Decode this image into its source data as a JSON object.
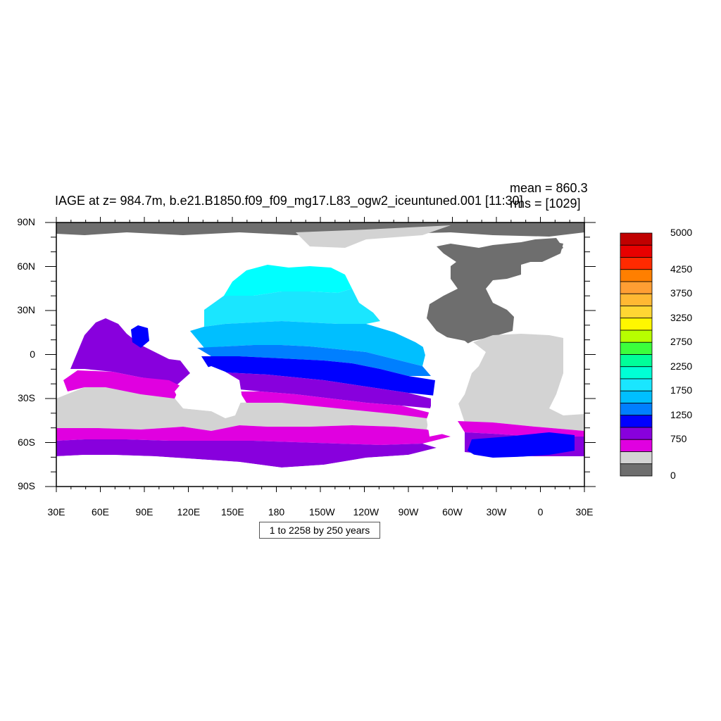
{
  "title": "IAGE at z= 984.7m, b.e21.B1850.f09_f09_mg17.L83_ogw2_iceuntuned.001 [11:30]",
  "stats": {
    "mean": "mean = 860.3",
    "rms": "rms = [1029]"
  },
  "note": "1 to 2258 by 250 years",
  "x_ticks": [
    "30E",
    "60E",
    "90E",
    "120E",
    "150E",
    "180",
    "150W",
    "120W",
    "90W",
    "60W",
    "30W",
    "0",
    "30E"
  ],
  "y_ticks": [
    "90N",
    "60N",
    "30N",
    "0",
    "30S",
    "60S",
    "90S"
  ],
  "colorbar": {
    "labels": [
      "5000",
      "4250",
      "3750",
      "3250",
      "2750",
      "2250",
      "1750",
      "1250",
      "750",
      "0"
    ],
    "colors": [
      "#C00000",
      "#E80000",
      "#FF2A00",
      "#FF7F00",
      "#FF9E33",
      "#FFB833",
      "#FFD633",
      "#FFF700",
      "#B7FF00",
      "#3CFF3C",
      "#00FF99",
      "#00FFD5",
      "#1AE6FF",
      "#00BFFF",
      "#007FFF",
      "#0000FF",
      "#8800DD",
      "#E000E0",
      "#D3D3D3",
      "#6E6E6E"
    ]
  },
  "colors": {
    "land": "#FFFFFF",
    "low_age": "#6E6E6E",
    "light_grey": "#D3D3D3",
    "magenta": "#E000E0",
    "purple": "#8800DD",
    "blue": "#0000FF",
    "sky": "#00BFFF",
    "cyan": "#1AE6FF",
    "aqua": "#00FFFF"
  }
}
